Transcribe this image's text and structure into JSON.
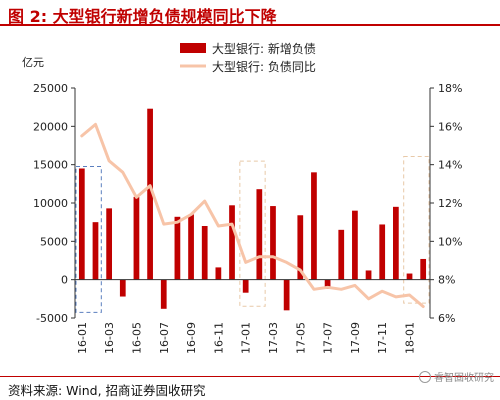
{
  "figure": {
    "title": "图 2:  大型银行新增负债规模同比下降",
    "source": "资料来源: Wind, 招商证券固收研究",
    "watermark": "睿智固收研究"
  },
  "colors": {
    "bar": "#c00000",
    "line": "#f7c4a8",
    "title": "#c00000",
    "highlight_blue": "#5b7fbf",
    "highlight_tan": "#e8c9a8"
  },
  "chart_data": {
    "type": "bar",
    "left_unit": "亿元",
    "x": [
      "16-01",
      "16-02",
      "16-03",
      "16-04",
      "16-05",
      "16-06",
      "16-07",
      "16-08",
      "16-09",
      "16-10",
      "16-11",
      "16-12",
      "17-01",
      "17-02",
      "17-03",
      "17-04",
      "17-05",
      "17-06",
      "17-07",
      "17-08",
      "17-09",
      "17-10",
      "17-11",
      "17-12",
      "18-01",
      "18-02"
    ],
    "x_tick_labels": [
      "16-01",
      "16-03",
      "16-05",
      "16-07",
      "16-09",
      "16-11",
      "17-01",
      "17-03",
      "17-05",
      "17-07",
      "17-09",
      "17-11",
      "18-01"
    ],
    "series": [
      {
        "name": "大型银行: 新增负债",
        "axis": "left",
        "kind": "bar",
        "values": [
          14500,
          7500,
          9300,
          -2200,
          10800,
          22300,
          -3800,
          8200,
          8500,
          7000,
          1600,
          9700,
          -1700,
          11800,
          9600,
          -4000,
          8400,
          14000,
          -1200,
          6500,
          9000,
          1200,
          7200,
          9500,
          800,
          2700
        ]
      },
      {
        "name": "大型银行: 负债同比",
        "axis": "right",
        "kind": "line",
        "values": [
          15.5,
          16.1,
          14.2,
          13.6,
          12.3,
          12.9,
          10.9,
          11.0,
          11.4,
          12.1,
          10.8,
          10.9,
          8.9,
          9.2,
          9.2,
          8.9,
          8.5,
          7.5,
          7.6,
          7.5,
          7.7,
          7.0,
          7.4,
          7.1,
          7.2,
          6.6
        ]
      }
    ],
    "ylim_left": [
      -5000,
      25000
    ],
    "yticks_left": [
      -5000,
      0,
      5000,
      10000,
      15000,
      20000,
      25000
    ],
    "ylim_right": [
      6,
      18
    ],
    "yticks_right": [
      "6%",
      "8%",
      "10%",
      "12%",
      "14%",
      "16%",
      "18%"
    ],
    "legend_position": "top-center",
    "grid": false,
    "highlight_boxes": [
      {
        "from": "16-01",
        "to": "16-02",
        "style": "blue-dashed",
        "ymin": -4000,
        "ymax": 14500
      },
      {
        "from": "17-01",
        "to": "17-02",
        "style": "tan-dashed",
        "ymin": -3200,
        "ymax": 15200
      },
      {
        "from": "18-01",
        "to": "18-02",
        "style": "tan-dashed",
        "ymin": -2800,
        "ymax": 15800
      }
    ]
  }
}
